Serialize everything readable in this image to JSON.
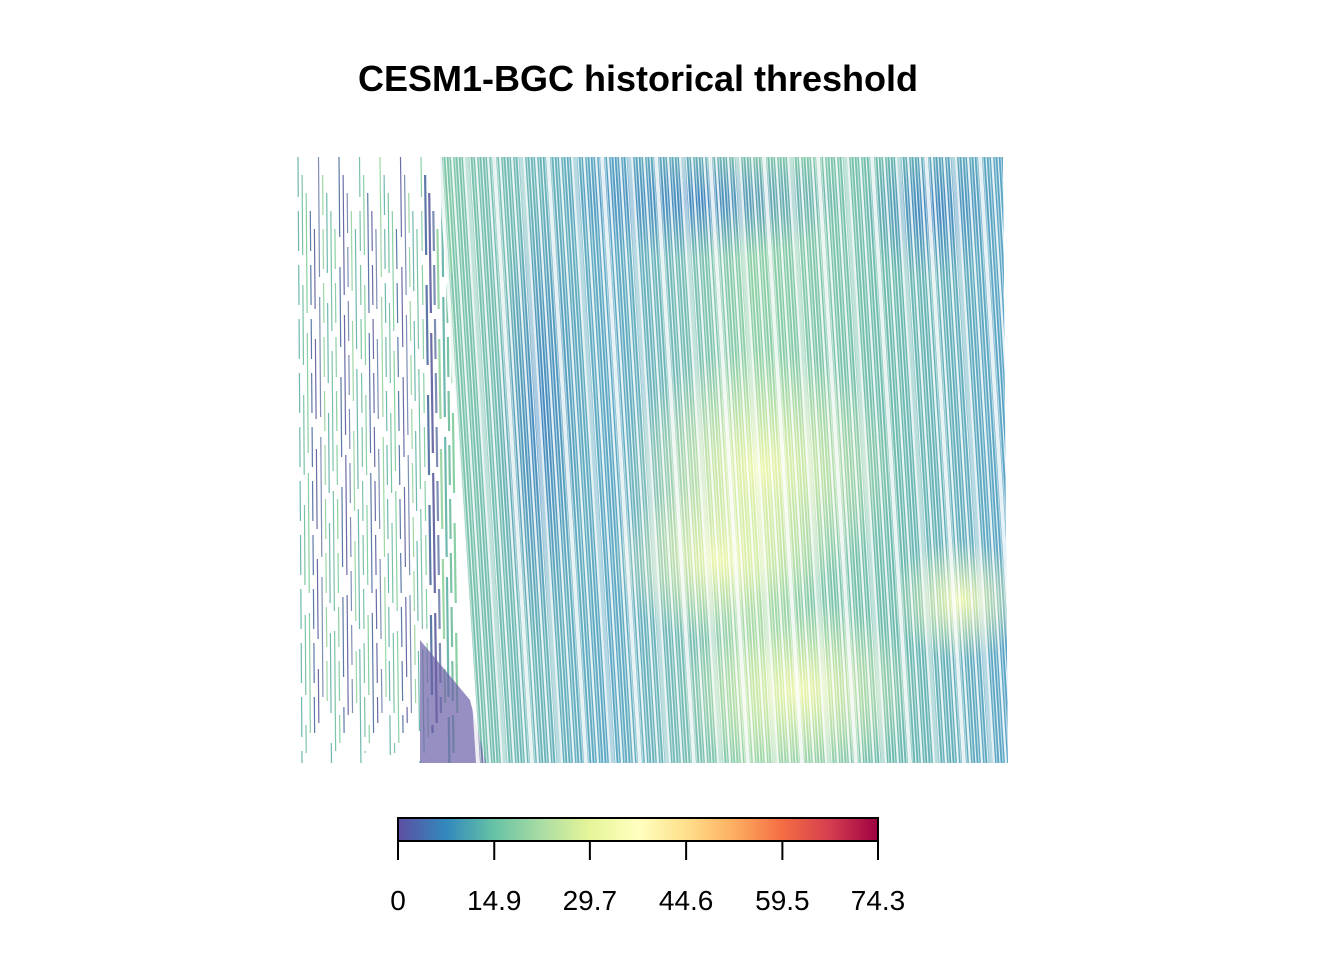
{
  "title": "CESM1-BGC historical threshold",
  "colorbar": {
    "min": 0,
    "max": 74.3,
    "ticks": [
      "0",
      "14.9",
      "29.7",
      "44.6",
      "59.5",
      "74.3"
    ],
    "tick_values": [
      0,
      14.9,
      29.7,
      44.6,
      59.5,
      74.3
    ],
    "palette": [
      "#5E4FA2",
      "#3288BD",
      "#66C2A5",
      "#ABDDA4",
      "#E6F598",
      "#FFFFBF",
      "#FEE08B",
      "#FDAE61",
      "#F46D43",
      "#D53E4F",
      "#9E0142"
    ]
  }
}
